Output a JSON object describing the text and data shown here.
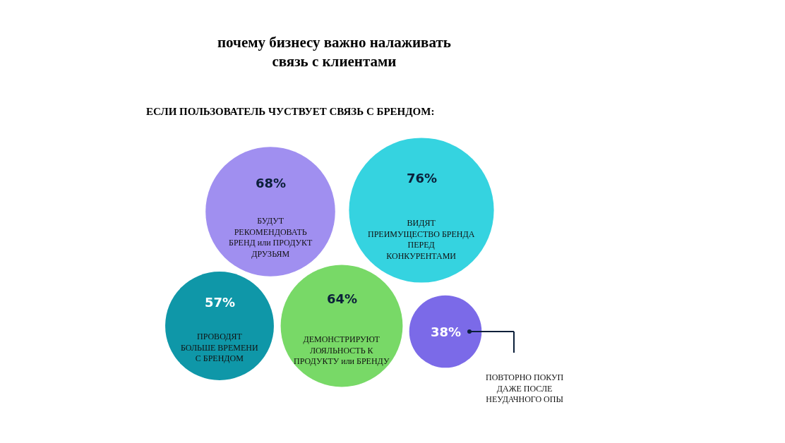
{
  "chart_data": {
    "type": "other",
    "title": "почему бизнесу важно налаживать\nсвязь с клиентами",
    "subtitle": "ЕСЛИ ПОЛЬЗОВАТЕЛЬ ЧУСТВУЕТ СВЯЗЬ С БРЕНДОМ:",
    "categories": [
      "БУДУТ\nРЕКОМЕНДОВАТЬ\nБРЕНД или ПРОДУКТ\nДРУЗЬЯМ",
      "ВИДЯТ\nПРЕИМУЩЕСТВО БРЕНДА\nПЕРЕД\nКОНКУРЕНТАМИ",
      "ПРОВОДЯТ\nБОЛЬШЕ ВРЕМЕНИ\nС БРЕНДОМ",
      "ДЕМОНСТРИРУЮТ\nЛОЯЛЬНОСТЬ К\nПРОДУКТУ или БРЕНДУ",
      "ПОВТОРНО ПОКУП\nДАЖЕ ПОСЛЕ\nНЕУДАЧНОГО ОПЫ"
    ],
    "values": [
      68,
      76,
      57,
      64,
      38
    ],
    "value_labels": [
      "68%",
      "76%",
      "57%",
      "64%",
      "38%"
    ],
    "colors": [
      "#a08ff0",
      "#35d3e0",
      "#0f97a8",
      "#78d967",
      "#7b6ae8"
    ],
    "legend": false
  }
}
